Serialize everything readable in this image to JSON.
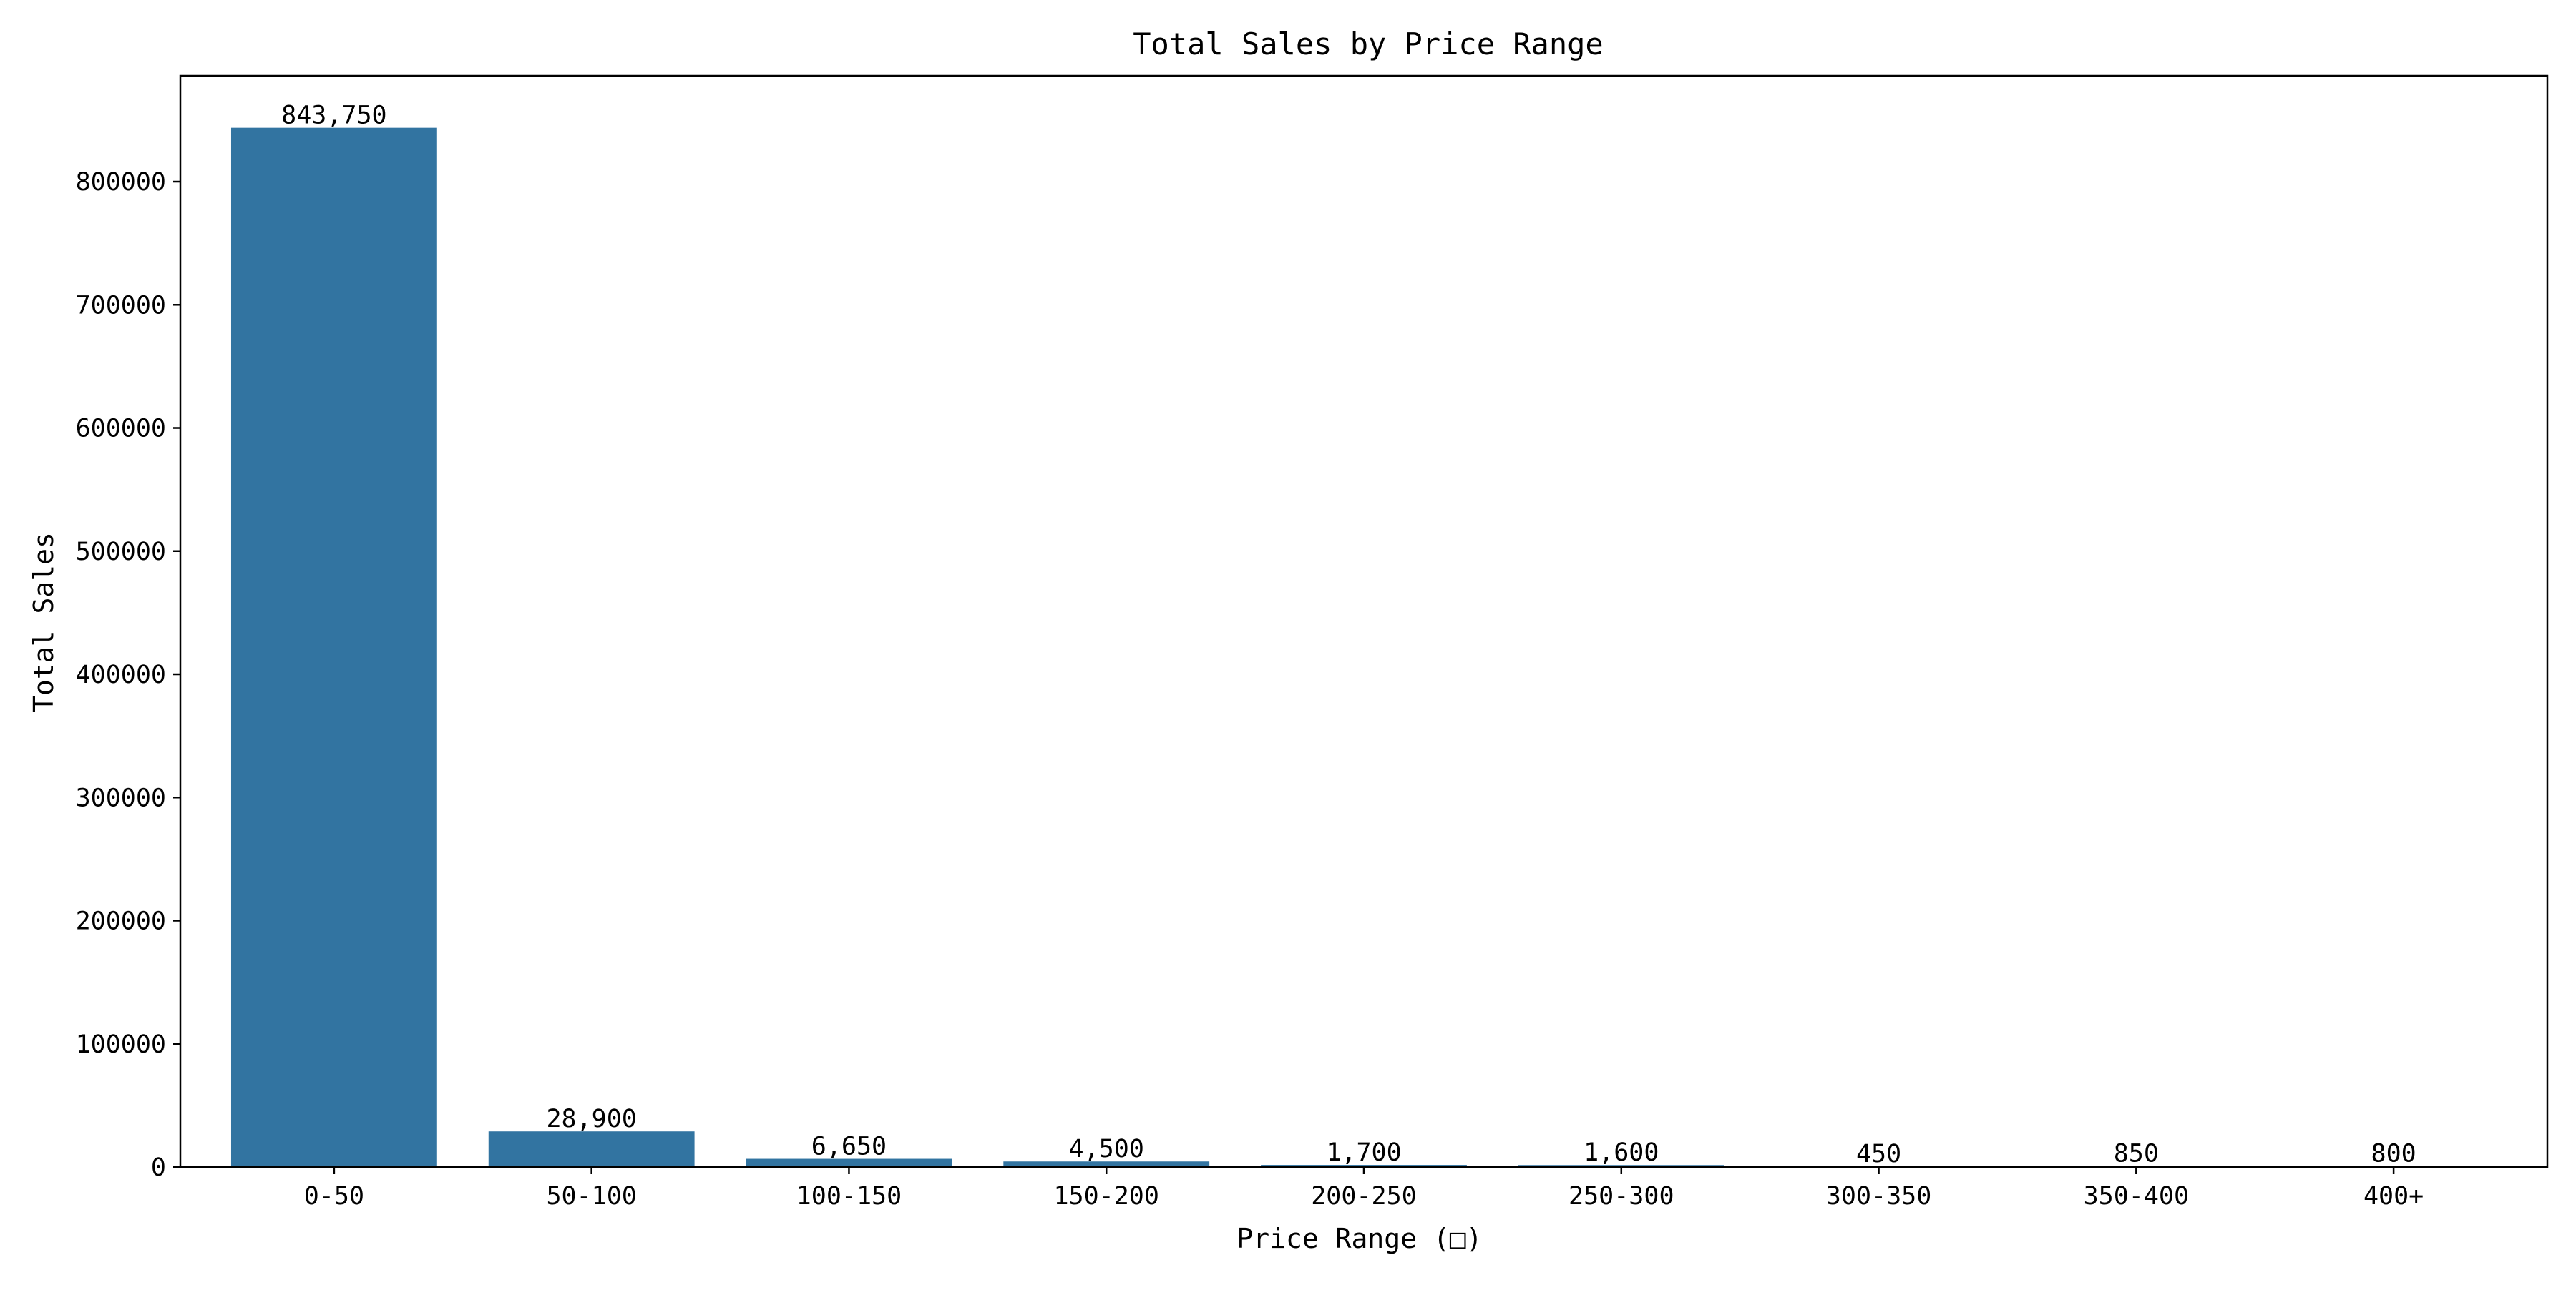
{
  "chart_data": {
    "type": "bar",
    "title": "Total Sales by Price Range",
    "xlabel": "Price Range (□)",
    "ylabel": "Total Sales",
    "categories": [
      "0-50",
      "50-100",
      "100-150",
      "150-200",
      "200-250",
      "250-300",
      "300-350",
      "350-400",
      "400+"
    ],
    "values": [
      843750,
      28900,
      6650,
      4500,
      1700,
      1600,
      450,
      850,
      800
    ],
    "value_labels": [
      "843,750",
      "28,900",
      "6,650",
      "4,500",
      "1,700",
      "1,600",
      "450",
      "850",
      "800"
    ],
    "yticks": [
      0,
      100000,
      200000,
      300000,
      400000,
      500000,
      600000,
      700000,
      800000
    ],
    "ytick_labels": [
      "0",
      "100000",
      "200000",
      "300000",
      "400000",
      "500000",
      "600000",
      "700000",
      "800000"
    ],
    "ylim": [
      0,
      885937.5
    ],
    "grid": false,
    "legend": "none",
    "bar_color": "#3274a1"
  }
}
